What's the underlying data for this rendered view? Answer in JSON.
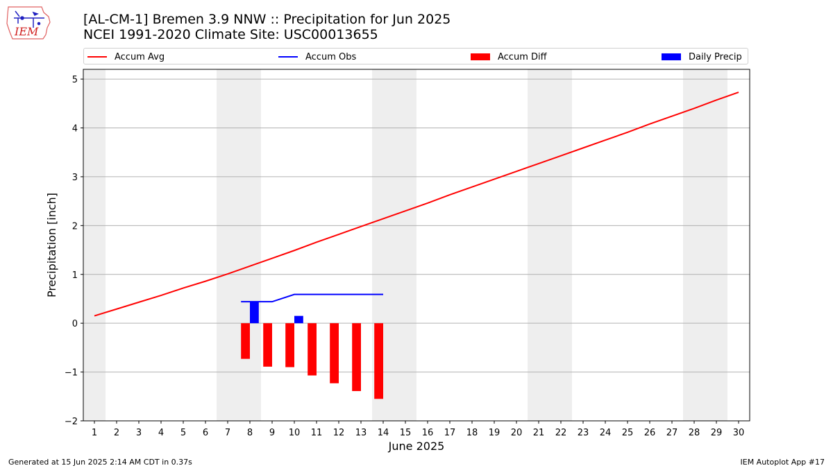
{
  "header": {
    "title_line1": "[AL-CM-1] Bremen 3.9 NNW :: Precipitation for Jun 2025",
    "title_line2": "NCEI 1991-2020 Climate Site: USC00013655",
    "logo_text": "IEM"
  },
  "legend": [
    {
      "label": "Accum Avg",
      "kind": "line",
      "color": "#ff0000"
    },
    {
      "label": "Accum Obs",
      "kind": "line",
      "color": "#0000ff"
    },
    {
      "label": "Accum Diff",
      "kind": "bar",
      "color": "#ff0000"
    },
    {
      "label": "Daily Precip",
      "kind": "bar",
      "color": "#0000ff"
    }
  ],
  "footer": {
    "left": "Generated at 15 Jun 2025 2:14 AM CDT in 0.37s",
    "right": "IEM Autoplot App #17"
  },
  "colors": {
    "avg": "#ff0000",
    "obs": "#0000ff",
    "diff": "#ff0000",
    "daily": "#0000ff",
    "weekend_band": "#eeeeee",
    "grid": "#b0b0b0"
  },
  "chart_data": {
    "type": "bar",
    "xlabel": "June 2025",
    "ylabel": "Precipitation [inch]",
    "xlim": [
      0.5,
      30.5
    ],
    "ylim": [
      -2.0,
      5.2
    ],
    "yticks": [
      -2,
      -1,
      0,
      1,
      2,
      3,
      4,
      5
    ],
    "grid": true,
    "legend_position": "top",
    "weekend_bands": [
      [
        0.5,
        1.5
      ],
      [
        6.5,
        8.5
      ],
      [
        13.5,
        15.5
      ],
      [
        20.5,
        22.5
      ],
      [
        27.5,
        29.5
      ]
    ],
    "days": [
      1,
      2,
      3,
      4,
      5,
      6,
      7,
      8,
      9,
      10,
      11,
      12,
      13,
      14,
      15,
      16,
      17,
      18,
      19,
      20,
      21,
      22,
      23,
      24,
      25,
      26,
      27,
      28,
      29,
      30
    ],
    "series": [
      {
        "name": "Accum Avg",
        "type": "line",
        "x": [
          1,
          2,
          3,
          4,
          5,
          6,
          7,
          8,
          9,
          10,
          11,
          12,
          13,
          14,
          15,
          16,
          17,
          18,
          19,
          20,
          21,
          22,
          23,
          24,
          25,
          26,
          27,
          28,
          29,
          30
        ],
        "values": [
          0.15,
          0.29,
          0.43,
          0.57,
          0.72,
          0.86,
          1.01,
          1.17,
          1.33,
          1.49,
          1.66,
          1.82,
          1.98,
          2.14,
          2.3,
          2.46,
          2.63,
          2.79,
          2.95,
          3.11,
          3.27,
          3.43,
          3.59,
          3.75,
          3.91,
          4.08,
          4.24,
          4.4,
          4.57,
          4.73
        ]
      },
      {
        "name": "Accum Obs",
        "type": "line",
        "x": [
          8,
          9,
          10,
          11,
          12,
          13,
          14
        ],
        "values": [
          0.44,
          0.44,
          0.59,
          0.59,
          0.59,
          0.59,
          0.59
        ]
      },
      {
        "name": "Accum Diff",
        "type": "bar",
        "x": [
          8,
          9,
          10,
          11,
          12,
          13,
          14
        ],
        "values": [
          -0.73,
          -0.89,
          -0.9,
          -1.07,
          -1.23,
          -1.39,
          -1.55
        ]
      },
      {
        "name": "Daily Precip",
        "type": "bar",
        "x": [
          8,
          9,
          10,
          11,
          12,
          13,
          14
        ],
        "values": [
          0.44,
          0.0,
          0.15,
          0.0,
          0.0,
          0.0,
          0.0
        ]
      }
    ]
  }
}
